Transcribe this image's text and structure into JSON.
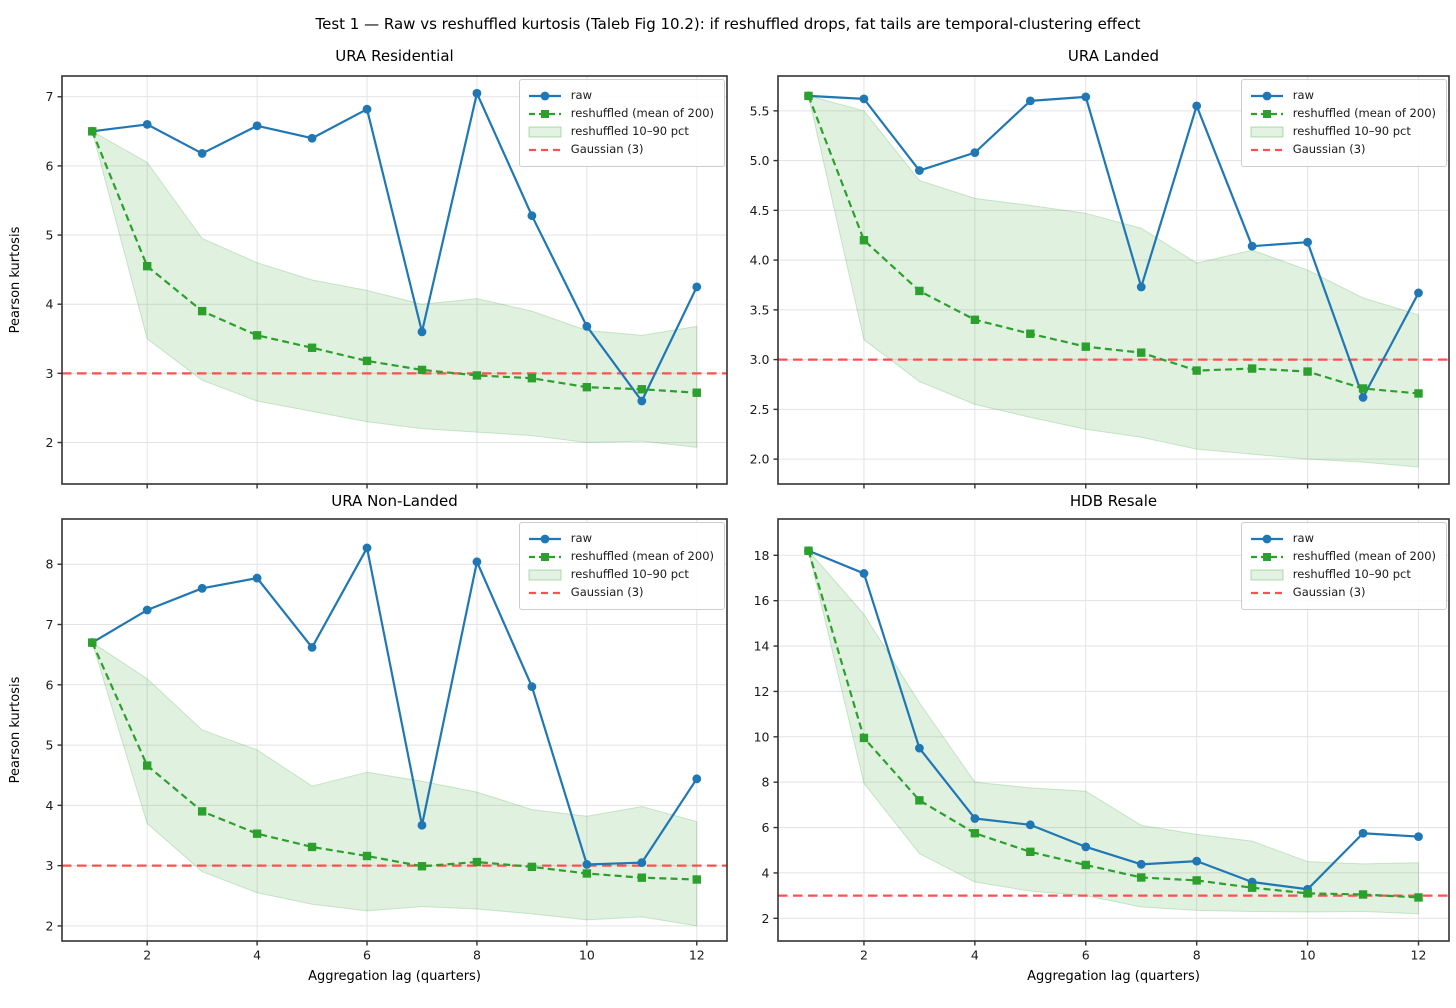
{
  "suptitle": "Test 1 — Raw vs reshuffled kurtosis (Taleb Fig 10.2): if reshuffled drops, fat tails are temporal-clustering effect",
  "axes": {
    "xlabel": "Aggregation lag (quarters)",
    "ylabel": "Pearson kurtosis"
  },
  "legend": {
    "raw": "raw",
    "reshuffled": "reshuffled (mean of 200)",
    "band": "reshuffled 10–90 pct",
    "gaussian": "Gaussian (3)"
  },
  "colors": {
    "raw": "#1f77b4",
    "reshuffled": "#2ca02c",
    "band_fill": "#e3f2e3",
    "gaussian": "#ff5050",
    "grid": "#e3e3e3",
    "spine": "#333333",
    "text": "#1a1a1a"
  },
  "chart_data": [
    {
      "type": "line",
      "title": "URA Residential",
      "xlabel": "Aggregation lag (quarters)",
      "ylabel": "Pearson kurtosis",
      "x": [
        1,
        2,
        3,
        4,
        5,
        6,
        7,
        8,
        9,
        10,
        11,
        12
      ],
      "xticks": [
        2,
        4,
        6,
        8,
        10,
        12
      ],
      "yticks": [
        "2",
        "3",
        "4",
        "5",
        "6",
        "7"
      ],
      "xlim": [
        0.45,
        12.55
      ],
      "ylim": [
        1.4,
        7.3
      ],
      "gaussian_reference": 3,
      "show_xticklabels": false,
      "legend_position": "upper right",
      "grid": true,
      "series": [
        {
          "name": "raw",
          "values": [
            6.5,
            6.6,
            6.18,
            6.58,
            6.4,
            6.82,
            3.6,
            7.05,
            5.28,
            3.68,
            2.6,
            4.25
          ]
        },
        {
          "name": "reshuffled (mean of 200)",
          "values": [
            6.5,
            4.55,
            3.9,
            3.55,
            3.37,
            3.18,
            3.05,
            2.97,
            2.93,
            2.8,
            2.77,
            2.72
          ]
        },
        {
          "name": "reshuffled 10–90 pct upper",
          "values": [
            6.5,
            6.05,
            4.95,
            4.6,
            4.35,
            4.2,
            4.0,
            4.08,
            3.9,
            3.62,
            3.55,
            3.68
          ]
        },
        {
          "name": "reshuffled 10–90 pct lower",
          "values": [
            6.5,
            3.5,
            2.9,
            2.6,
            2.45,
            2.3,
            2.2,
            2.15,
            2.1,
            2.0,
            2.02,
            1.93
          ]
        }
      ]
    },
    {
      "type": "line",
      "title": "URA Landed",
      "xlabel": "Aggregation lag (quarters)",
      "ylabel": "Pearson kurtosis",
      "x": [
        1,
        2,
        3,
        4,
        5,
        6,
        7,
        8,
        9,
        10,
        11,
        12
      ],
      "xticks": [
        2,
        4,
        6,
        8,
        10,
        12
      ],
      "yticks": [
        "2.0",
        "2.5",
        "3.0",
        "3.5",
        "4.0",
        "4.5",
        "5.0",
        "5.5"
      ],
      "xlim": [
        0.45,
        12.55
      ],
      "ylim": [
        1.75,
        5.85
      ],
      "gaussian_reference": 3,
      "show_xticklabels": false,
      "legend_position": "upper right",
      "grid": true,
      "series": [
        {
          "name": "raw",
          "values": [
            5.65,
            5.62,
            4.9,
            5.08,
            5.6,
            5.64,
            3.73,
            5.55,
            4.14,
            4.18,
            2.62,
            3.67
          ]
        },
        {
          "name": "reshuffled (mean of 200)",
          "values": [
            5.65,
            4.2,
            3.69,
            3.4,
            3.26,
            3.13,
            3.07,
            2.89,
            2.91,
            2.88,
            2.71,
            2.66
          ]
        },
        {
          "name": "reshuffled 10–90 pct upper",
          "values": [
            5.65,
            5.5,
            4.8,
            4.62,
            4.55,
            4.47,
            4.32,
            3.97,
            4.1,
            3.9,
            3.62,
            3.45
          ]
        },
        {
          "name": "reshuffled 10–90 pct lower",
          "values": [
            5.65,
            3.2,
            2.78,
            2.55,
            2.42,
            2.3,
            2.22,
            2.1,
            2.05,
            2.0,
            1.97,
            1.92
          ]
        }
      ]
    },
    {
      "type": "line",
      "title": "URA Non-Landed",
      "xlabel": "Aggregation lag (quarters)",
      "ylabel": "Pearson kurtosis",
      "x": [
        1,
        2,
        3,
        4,
        5,
        6,
        7,
        8,
        9,
        10,
        11,
        12
      ],
      "xticks": [
        2,
        4,
        6,
        8,
        10,
        12
      ],
      "yticks": [
        "2",
        "3",
        "4",
        "5",
        "6",
        "7",
        "8"
      ],
      "xlim": [
        0.45,
        12.55
      ],
      "ylim": [
        1.75,
        8.75
      ],
      "gaussian_reference": 3,
      "show_xticklabels": true,
      "legend_position": "upper right",
      "grid": true,
      "series": [
        {
          "name": "raw",
          "values": [
            6.7,
            7.24,
            7.6,
            7.77,
            6.62,
            8.27,
            3.67,
            8.04,
            5.97,
            3.02,
            3.05,
            4.44
          ]
        },
        {
          "name": "reshuffled (mean of 200)",
          "values": [
            6.7,
            4.66,
            3.9,
            3.53,
            3.31,
            3.16,
            2.99,
            3.06,
            2.98,
            2.87,
            2.8,
            2.77
          ]
        },
        {
          "name": "reshuffled 10–90 pct upper",
          "values": [
            6.7,
            6.1,
            5.25,
            4.92,
            4.32,
            4.55,
            4.4,
            4.22,
            3.93,
            3.82,
            3.98,
            3.73
          ]
        },
        {
          "name": "reshuffled 10–90 pct lower",
          "values": [
            6.7,
            3.7,
            2.9,
            2.55,
            2.36,
            2.25,
            2.32,
            2.28,
            2.2,
            2.1,
            2.15,
            2.0
          ]
        }
      ]
    },
    {
      "type": "line",
      "title": "HDB Resale",
      "xlabel": "Aggregation lag (quarters)",
      "ylabel": "Pearson kurtosis",
      "x": [
        1,
        2,
        3,
        4,
        5,
        6,
        7,
        8,
        9,
        10,
        11,
        12
      ],
      "xticks": [
        2,
        4,
        6,
        8,
        10,
        12
      ],
      "yticks": [
        "2",
        "4",
        "6",
        "8",
        "10",
        "12",
        "14",
        "16",
        "18"
      ],
      "xlim": [
        0.45,
        12.55
      ],
      "ylim": [
        1.0,
        19.6
      ],
      "gaussian_reference": 3,
      "show_xticklabels": true,
      "legend_position": "upper right",
      "grid": true,
      "series": [
        {
          "name": "raw",
          "values": [
            18.2,
            17.2,
            9.5,
            6.4,
            6.12,
            5.15,
            4.38,
            4.52,
            3.6,
            3.28,
            5.75,
            5.6
          ]
        },
        {
          "name": "reshuffled (mean of 200)",
          "values": [
            18.2,
            9.95,
            7.2,
            5.75,
            4.93,
            4.35,
            3.8,
            3.67,
            3.35,
            3.1,
            3.05,
            2.92
          ]
        },
        {
          "name": "reshuffled 10–90 pct upper",
          "values": [
            18.2,
            15.4,
            11.5,
            8.0,
            7.75,
            7.6,
            6.1,
            5.7,
            5.4,
            4.5,
            4.4,
            4.45
          ]
        },
        {
          "name": "reshuffled 10–90 pct lower",
          "values": [
            18.2,
            7.95,
            4.85,
            3.6,
            3.2,
            3.0,
            2.5,
            2.35,
            2.3,
            2.28,
            2.3,
            2.2
          ]
        }
      ]
    }
  ]
}
